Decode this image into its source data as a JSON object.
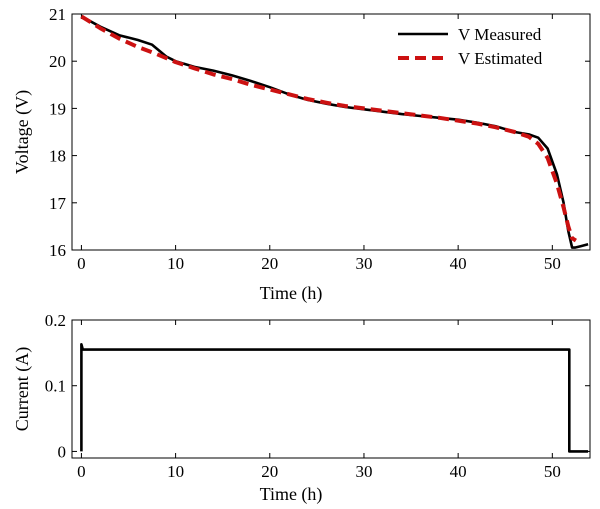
{
  "chart_data": [
    {
      "type": "line",
      "xlabel": "Time (h)",
      "ylabel": "Voltage (V)",
      "xlim": [
        -1,
        54
      ],
      "ylim": [
        16,
        21
      ],
      "xticks": [
        0,
        10,
        20,
        30,
        40,
        50
      ],
      "yticks": [
        16,
        17,
        18,
        19,
        20,
        21
      ],
      "grid": false,
      "legend_position": "top-right",
      "series": [
        {
          "name": "V Measured",
          "color": "#000000",
          "style": "solid",
          "x": [
            0,
            2,
            4,
            6,
            7.5,
            9,
            10,
            12,
            14,
            16,
            18,
            20,
            22,
            24,
            26,
            28,
            30,
            32,
            34,
            36,
            38,
            40,
            42,
            44,
            46,
            47.5,
            48.5,
            49.5,
            50.5,
            51.2,
            51.7,
            52.1,
            52.4,
            53,
            53.8
          ],
          "y": [
            20.95,
            20.73,
            20.55,
            20.45,
            20.35,
            20.1,
            20.0,
            19.88,
            19.8,
            19.7,
            19.58,
            19.45,
            19.3,
            19.18,
            19.1,
            19.03,
            18.98,
            18.93,
            18.88,
            18.84,
            18.8,
            18.76,
            18.7,
            18.62,
            18.5,
            18.45,
            18.38,
            18.15,
            17.6,
            17.0,
            16.4,
            16.05,
            16.05,
            16.08,
            16.12
          ]
        },
        {
          "name": "V Estimated",
          "color": "#cc1111",
          "style": "dashed",
          "x": [
            0,
            2,
            4,
            6,
            8,
            10,
            12,
            14,
            16,
            18,
            20,
            22,
            24,
            26,
            28,
            30,
            32,
            34,
            36,
            38,
            40,
            42,
            44,
            46,
            47.5,
            48.5,
            49.5,
            50.5,
            51.2,
            51.7,
            52.1,
            52.5
          ],
          "y": [
            20.95,
            20.7,
            20.48,
            20.3,
            20.15,
            19.98,
            19.85,
            19.72,
            19.62,
            19.5,
            19.4,
            19.3,
            19.2,
            19.12,
            19.05,
            19.0,
            18.95,
            18.9,
            18.85,
            18.8,
            18.74,
            18.68,
            18.6,
            18.5,
            18.4,
            18.25,
            17.95,
            17.4,
            16.9,
            16.5,
            16.25,
            16.2
          ]
        }
      ]
    },
    {
      "type": "line",
      "xlabel": "Time (h)",
      "ylabel": "Current (A)",
      "xlim": [
        -1,
        54
      ],
      "ylim": [
        -0.01,
        0.2
      ],
      "xticks": [
        0,
        10,
        20,
        30,
        40,
        50
      ],
      "yticks": [
        0,
        0.1,
        0.2
      ],
      "ytick_labels": [
        "0",
        "0.1",
        "0.2"
      ],
      "grid": false,
      "series": [
        {
          "color": "#000000",
          "style": "solid",
          "x": [
            0,
            0,
            0.15,
            0.3,
            51.8,
            51.8,
            53.8
          ],
          "y": [
            0,
            0.163,
            0.155,
            0.155,
            0.155,
            0,
            0
          ]
        }
      ]
    }
  ]
}
